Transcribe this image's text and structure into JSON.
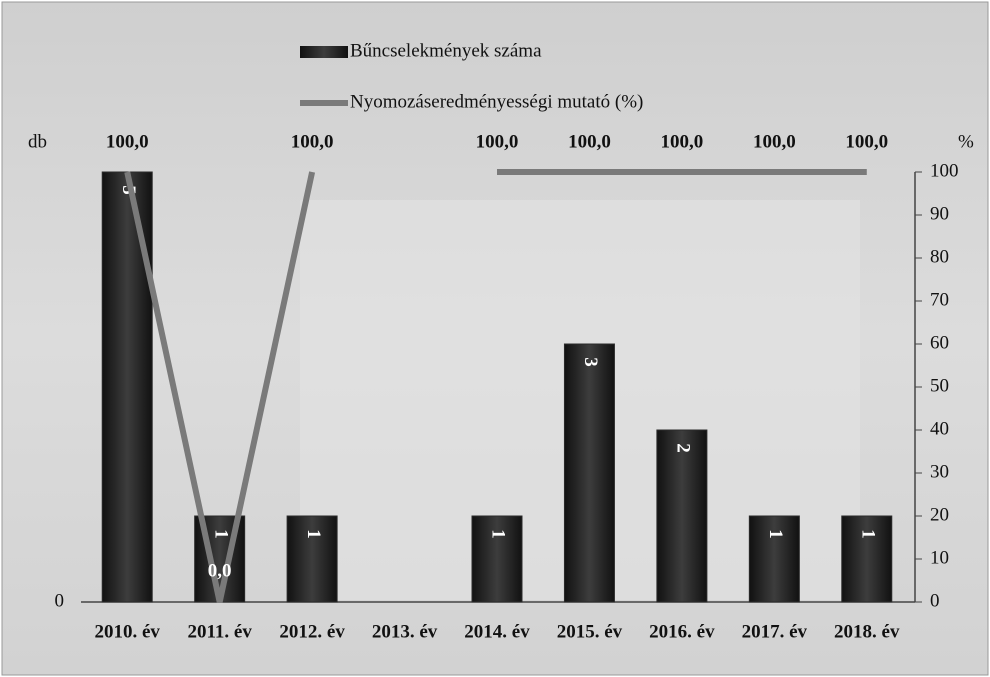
{
  "chart_data": {
    "type": "bar_line",
    "categories": [
      "2010. év",
      "2011. év",
      "2012. év",
      "2013. év",
      "2014. év",
      "2015. év",
      "2016. év",
      "2017. év",
      "2018. év"
    ],
    "series": [
      {
        "name": "Bűncselekmények száma",
        "type": "bar",
        "color": "#2b2b2b",
        "values": [
          5,
          1,
          1,
          null,
          1,
          3,
          2,
          1,
          1
        ]
      },
      {
        "name": "Nyomozáseredményességi mutató (%)",
        "type": "line",
        "axis": "y2",
        "color": "#7a7a7a",
        "values": [
          100,
          0,
          100,
          null,
          100,
          100,
          100,
          100,
          100
        ],
        "value_labels": [
          "100,0",
          "0,0",
          "100,0",
          null,
          "100,0",
          "100,0",
          "100,0",
          "100,0",
          "100,0"
        ]
      }
    ],
    "ylabel": "db",
    "y2label": "%",
    "ylim": [
      0,
      5
    ],
    "yticks": [
      0
    ],
    "y2lim": [
      0,
      100
    ],
    "y2ticks": [
      0,
      10,
      20,
      30,
      40,
      50,
      60,
      70,
      80,
      90,
      100
    ]
  }
}
